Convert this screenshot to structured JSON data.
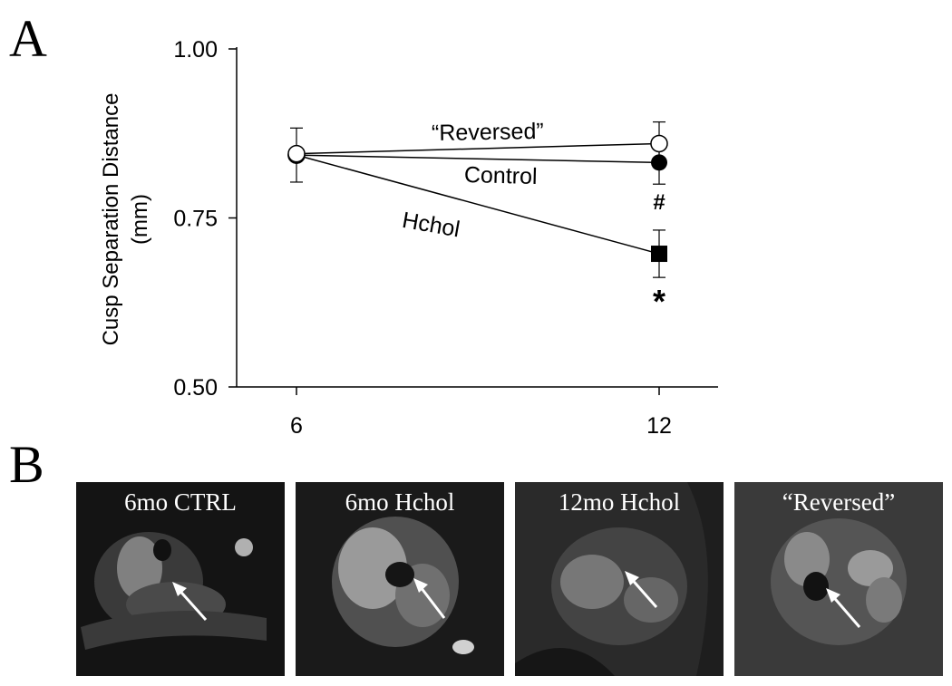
{
  "panels": {
    "a": "A",
    "b": "B"
  },
  "chart_data": {
    "type": "line",
    "ylabel": "Cusp Separation Distance (mm)",
    "ylabel_lines": [
      "Cusp Separation Distance",
      "(mm)"
    ],
    "xlabel": "",
    "categories": [
      "6",
      "12"
    ],
    "yticks": [
      "1.00",
      "0.75",
      "0.50"
    ],
    "ylim": [
      0.5,
      1.0
    ],
    "grid": false,
    "series": [
      {
        "name": "“Reversed”",
        "values": [
          0.845,
          0.86
        ],
        "err": [
          0.0,
          0.032
        ],
        "marker": "open-circle",
        "annotation": ""
      },
      {
        "name": "Control",
        "values": [
          0.843,
          0.832
        ],
        "err": [
          0.04,
          0.032
        ],
        "marker": "filled-circle",
        "annotation": "#"
      },
      {
        "name": "Hchol",
        "values": [
          0.843,
          0.697
        ],
        "err": [
          0.0,
          0.035
        ],
        "marker": "filled-square",
        "annotation": "*"
      }
    ]
  },
  "images": [
    {
      "label": "6mo CTRL"
    },
    {
      "label": "6mo Hchol"
    },
    {
      "label": "12mo Hchol"
    },
    {
      "label": "“Reversed”"
    }
  ]
}
